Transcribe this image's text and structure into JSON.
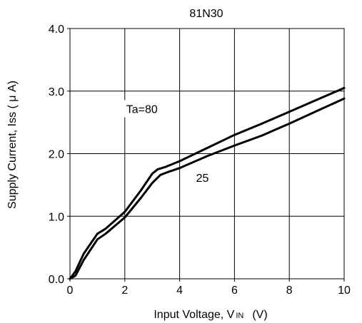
{
  "chart_data": {
    "type": "line",
    "title": "81N30",
    "xlabel": "Input Voltage, V",
    "xlabel_sub": "IN",
    "xlabel_unit": "(V)",
    "ylabel": "Supply Current, Iss ( μ A)",
    "xlim": [
      0,
      10
    ],
    "ylim": [
      0,
      4.0
    ],
    "x_ticks": [
      0,
      2,
      4,
      6,
      8,
      10
    ],
    "x_tick_labels": [
      "0",
      "2",
      "4",
      "6",
      "8",
      "10"
    ],
    "y_ticks": [
      0,
      1,
      2,
      3,
      4
    ],
    "y_tick_labels": [
      "0.0",
      "1.0",
      "2.0",
      "3.0",
      "4.0"
    ],
    "grid": true,
    "line_color": "#000000",
    "series": [
      {
        "name": "Ta=80",
        "x": [
          0,
          0.2,
          0.5,
          1.0,
          1.3,
          2.0,
          2.6,
          3.0,
          3.2,
          3.5,
          4.0,
          5.0,
          6.0,
          7.0,
          8.0,
          9.0,
          10.0
        ],
        "y": [
          0,
          0.12,
          0.4,
          0.72,
          0.8,
          1.07,
          1.42,
          1.68,
          1.75,
          1.79,
          1.88,
          2.09,
          2.3,
          2.48,
          2.67,
          2.86,
          3.05
        ]
      },
      {
        "name": "25",
        "x": [
          0,
          0.2,
          0.5,
          1.0,
          1.3,
          2.0,
          2.6,
          3.0,
          3.3,
          3.6,
          4.0,
          5.0,
          6.0,
          7.0,
          8.0,
          9.0,
          10.0
        ],
        "y": [
          0,
          0.05,
          0.3,
          0.63,
          0.72,
          0.98,
          1.3,
          1.53,
          1.66,
          1.71,
          1.77,
          1.96,
          2.13,
          2.29,
          2.48,
          2.68,
          2.88
        ]
      }
    ]
  }
}
